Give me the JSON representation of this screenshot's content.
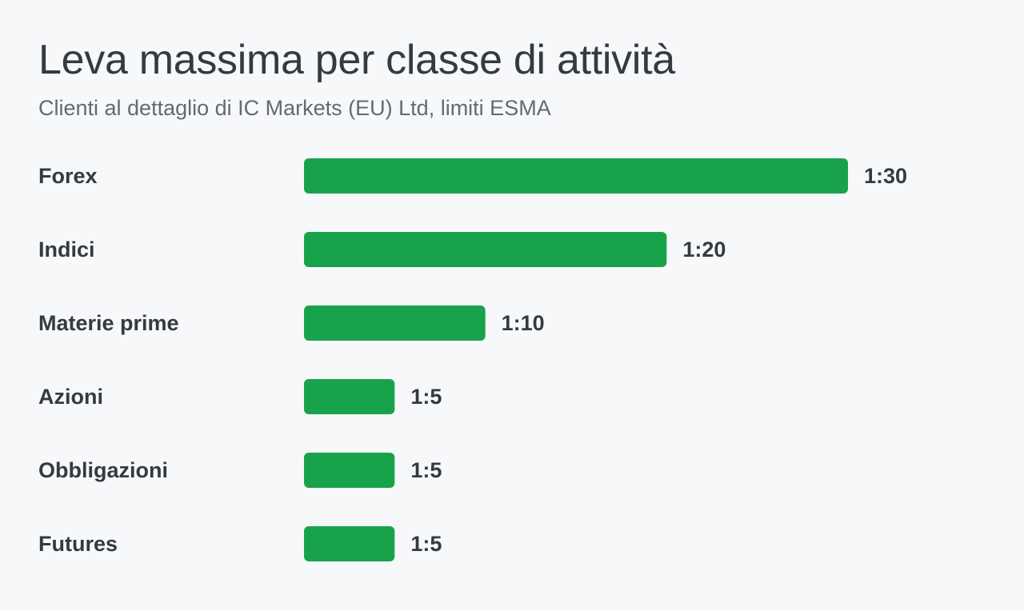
{
  "header": {
    "title": "Leva massima per classe di attività",
    "subtitle": "Clienti al dettaglio di IC Markets (EU) Ltd, limiti ESMA"
  },
  "colors": {
    "bar": "#18a34a",
    "text": "#353a42",
    "subtitle": "#636a74",
    "background": "#f7f8fa"
  },
  "chart_data": {
    "type": "bar",
    "orientation": "horizontal",
    "title": "Leva massima per classe di attività",
    "subtitle": "Clienti al dettaglio di IC Markets (EU) Ltd, limiti ESMA",
    "categories": [
      "Forex",
      "Indici",
      "Materie prime",
      "Azioni",
      "Obbligazioni",
      "Futures"
    ],
    "values": [
      30,
      20,
      10,
      5,
      5,
      5
    ],
    "value_labels": [
      "1:30",
      "1:20",
      "1:10",
      "1:5",
      "1:5",
      "1:5"
    ],
    "xlim": [
      0,
      30
    ],
    "grid": false,
    "legend": "none"
  }
}
